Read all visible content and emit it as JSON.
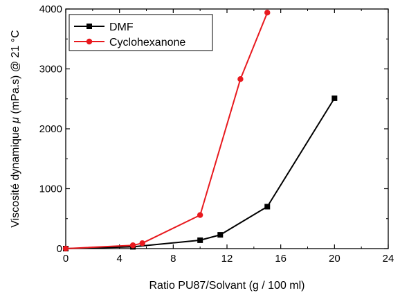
{
  "chart_data": {
    "type": "line",
    "title": "",
    "xlabel": "Ratio PU87/Solvant (g / 100 ml)",
    "ylabel": {
      "prefix": "Viscosité dynamique ",
      "symbol": "μ",
      "suffix": " (mPa.s) @ 21 °C"
    },
    "xlim": [
      0,
      24
    ],
    "ylim": [
      0,
      4000
    ],
    "x_ticks": [
      0,
      4,
      8,
      12,
      16,
      20,
      24
    ],
    "y_ticks": [
      0,
      1000,
      2000,
      3000,
      4000
    ],
    "grid": false,
    "legend_position": "top-left",
    "series": [
      {
        "name": "DMF",
        "color": "#000000",
        "marker": "square",
        "x": [
          0,
          5,
          10,
          11.5,
          15,
          20
        ],
        "y": [
          0,
          30,
          140,
          230,
          700,
          2510
        ]
      },
      {
        "name": "Cyclohexanone",
        "color": "#e8191e",
        "marker": "circle",
        "x": [
          0,
          5,
          5.7,
          10,
          13,
          15
        ],
        "y": [
          0,
          55,
          90,
          560,
          2830,
          3940
        ]
      }
    ]
  }
}
